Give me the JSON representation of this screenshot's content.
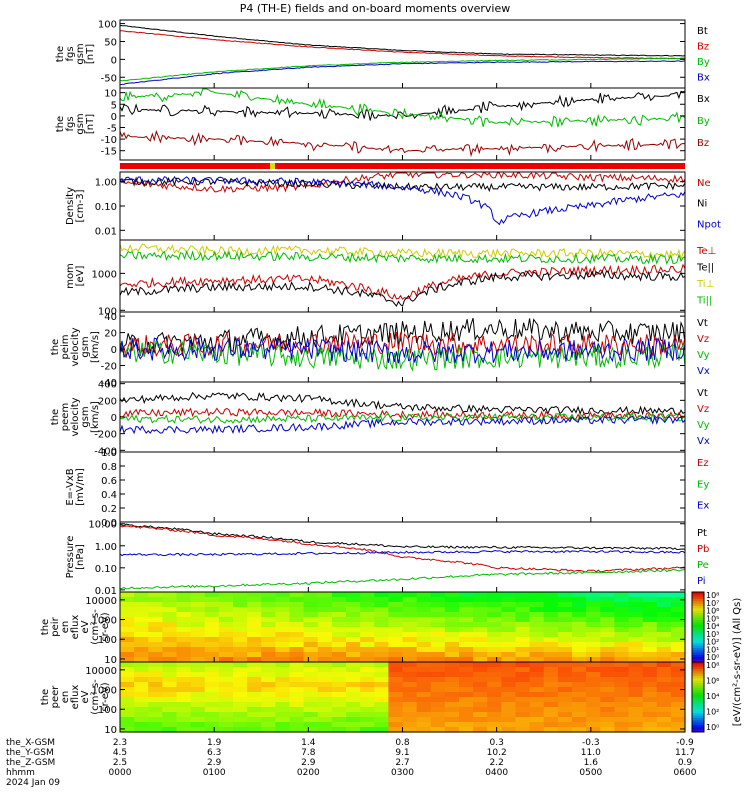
{
  "title": "P4 (TH-E) fields and on-board moments overview",
  "panels": [
    {
      "id": "fgs_gsm",
      "ylabel": [
        "the",
        "fgs",
        "gsm",
        "[nT]"
      ],
      "ticks": [
        "100",
        "50",
        "0",
        "-50"
      ],
      "tick_values": [
        100,
        50,
        0,
        -50
      ],
      "ylim": [
        -80,
        110
      ],
      "scale": "linear",
      "legend": [
        {
          "name": "Bt",
          "color": "#000000"
        },
        {
          "name": "Bz",
          "color": "#cc0000"
        },
        {
          "name": "By",
          "color": "#00bb00"
        },
        {
          "name": "Bx",
          "color": "#0000cc"
        }
      ]
    },
    {
      "id": "fgs_gsm_zoom",
      "ylabel": [
        "the",
        "fgs",
        "gsm",
        "[nT]"
      ],
      "ticks": [
        "10",
        "5",
        "0",
        "-5",
        "-10",
        "-15"
      ],
      "tick_values": [
        10,
        5,
        0,
        -5,
        -10,
        -15
      ],
      "ylim": [
        -19,
        12
      ],
      "scale": "linear",
      "legend": [
        {
          "name": "Bx",
          "color": "#000000"
        },
        {
          "name": "By",
          "color": "#00bb00"
        },
        {
          "name": "Bz",
          "color": "#990000"
        }
      ]
    },
    {
      "id": "density",
      "ylabel": [
        "Density",
        "[cm-3]"
      ],
      "ticks": [
        "1.00",
        "0.10",
        "0.01"
      ],
      "tick_values": [
        1,
        0.1,
        0.01
      ],
      "ylim": [
        0.004,
        2.5
      ],
      "scale": "log",
      "legend": [
        {
          "name": "Ne",
          "color": "#cc0000"
        },
        {
          "name": "Ni",
          "color": "#000000"
        },
        {
          "name": "Npot",
          "color": "#0000cc"
        }
      ]
    },
    {
      "id": "temp",
      "ylabel": [
        "mom",
        "[eV]"
      ],
      "ticks": [
        "1000",
        "100"
      ],
      "tick_values": [
        1000,
        100
      ],
      "ylim": [
        90,
        8000
      ],
      "scale": "log",
      "legend": [
        {
          "name": "Te⊥",
          "color": "#cc0000"
        },
        {
          "name": "Te||",
          "color": "#000000"
        },
        {
          "name": "Ti⊥",
          "color": "#cccc00"
        },
        {
          "name": "Ti||",
          "color": "#00bb00"
        }
      ]
    },
    {
      "id": "peim_vel",
      "ylabel": [
        "the",
        "peim",
        "velocity",
        "gsm",
        "[km/s]"
      ],
      "ticks": [
        "40",
        "20",
        "0",
        "-20",
        "-40"
      ],
      "tick_values": [
        40,
        20,
        0,
        -20,
        -40
      ],
      "ylim": [
        -40,
        45
      ],
      "scale": "linear",
      "legend": [
        {
          "name": "Vt",
          "color": "#000000"
        },
        {
          "name": "Vz",
          "color": "#cc0000"
        },
        {
          "name": "Vy",
          "color": "#00bb00"
        },
        {
          "name": "Vx",
          "color": "#0000cc"
        }
      ]
    },
    {
      "id": "peem_vel",
      "ylabel": [
        "the",
        "peem",
        "velocity",
        "gsm",
        "[km/s]"
      ],
      "ticks": [
        "400",
        "200",
        "0",
        "-200",
        "-400"
      ],
      "tick_values": [
        400,
        200,
        0,
        -200,
        -400
      ],
      "ylim": [
        -420,
        420
      ],
      "scale": "linear",
      "legend": [
        {
          "name": "Vt",
          "color": "#000000"
        },
        {
          "name": "Vz",
          "color": "#cc0000"
        },
        {
          "name": "Vy",
          "color": "#00bb00"
        },
        {
          "name": "Vx",
          "color": "#0000cc"
        }
      ]
    },
    {
      "id": "efield",
      "ylabel": [
        "E=-VxB",
        "[mV/m]"
      ],
      "ticks": [
        "1.0",
        "0.8",
        "0.6",
        "0.4",
        "0.2",
        "0.0"
      ],
      "tick_values": [
        1.0,
        0.8,
        0.6,
        0.4,
        0.2,
        0.0
      ],
      "ylim": [
        0,
        1
      ],
      "scale": "linear",
      "legend": [
        {
          "name": "Ez",
          "color": "#cc0000"
        },
        {
          "name": "Ey",
          "color": "#00bb00"
        },
        {
          "name": "Ex",
          "color": "#0000cc"
        }
      ]
    },
    {
      "id": "pressure",
      "ylabel": [
        "Pressure",
        "[nPa]"
      ],
      "ticks": [
        "10.00",
        "1.00",
        "0.10",
        "0.01"
      ],
      "tick_values": [
        10,
        1,
        0.1,
        0.01
      ],
      "ylim": [
        0.008,
        12
      ],
      "scale": "log",
      "legend": [
        {
          "name": "Pt",
          "color": "#000000"
        },
        {
          "name": "Pb",
          "color": "#cc0000"
        },
        {
          "name": "Pe",
          "color": "#00bb00"
        },
        {
          "name": "Pi",
          "color": "#0000cc"
        }
      ]
    },
    {
      "id": "peir_spec",
      "ylabel": [
        "the",
        "peir",
        "en",
        "eflux",
        "eV",
        "(cm²-s-",
        "sr-eV)"
      ],
      "ticks": [
        "10000",
        "1000",
        "100",
        "10"
      ],
      "tick_values": [
        10000,
        1000,
        100,
        10
      ],
      "scale": "log",
      "legend": []
    },
    {
      "id": "peer_spec",
      "ylabel": [
        "the",
        "peer",
        "en",
        "eflux",
        "eV",
        "(cm²-s-",
        "sr-eV)"
      ],
      "ticks": [
        "10000",
        "1000",
        "100",
        "10"
      ],
      "tick_values": [
        10000,
        1000,
        100,
        10
      ],
      "scale": "log",
      "legend": []
    }
  ],
  "colorbar": {
    "label": "[eV/(cm²-s-sr-eV)] (All Qs)",
    "ticks_upper": [
      "10⁸",
      "10⁷",
      "10⁶",
      "10⁵",
      "10⁴",
      "10³",
      "10²",
      "10¹",
      "10⁰"
    ],
    "ticks_lower": [
      "10⁸",
      "10⁶",
      "10⁴",
      "10²",
      "10⁰"
    ]
  },
  "orbit": {
    "row_labels": [
      "the_X-GSM",
      "the_Y-GSM",
      "the_Z-GSM",
      "hhmm",
      "2024 Jan 09"
    ],
    "columns": [
      {
        "x": "2.3",
        "y": "4.5",
        "z": "2.5",
        "t": "0000"
      },
      {
        "x": "1.9",
        "y": "6.3",
        "z": "2.9",
        "t": "0100"
      },
      {
        "x": "1.4",
        "y": "7.8",
        "z": "2.9",
        "t": "0200"
      },
      {
        "x": "0.8",
        "y": "9.1",
        "z": "2.7",
        "t": "0300"
      },
      {
        "x": "0.3",
        "y": "10.2",
        "z": "2.2",
        "t": "0400"
      },
      {
        "x": "-0.3",
        "y": "11.0",
        "z": "1.6",
        "t": "0500"
      },
      {
        "x": "-0.9",
        "y": "11.7",
        "z": "0.9",
        "t": "0600"
      }
    ]
  },
  "colors": {
    "red": "#cc0000",
    "green": "#00cc00",
    "blue": "#0000cc",
    "black": "#000000",
    "yellow": "#dddd00"
  },
  "chart_data": {
    "type": "line",
    "title": "P4 (TH-E) fields and on-board moments overview",
    "x_unit": "hhmm",
    "x": [
      "0000",
      "0100",
      "0200",
      "0300",
      "0400",
      "0500",
      "0600"
    ],
    "series": [
      {
        "name": "Bt",
        "panel": "fgs_gsm",
        "values": [
          95,
          65,
          40,
          25,
          15,
          12,
          10
        ]
      },
      {
        "name": "Bz",
        "panel": "fgs_gsm",
        "values": [
          80,
          55,
          35,
          20,
          10,
          5,
          2
        ]
      },
      {
        "name": "By",
        "panel": "fgs_gsm",
        "values": [
          -60,
          -35,
          -18,
          -8,
          -3,
          0,
          3
        ]
      },
      {
        "name": "Bx",
        "panel": "fgs_gsm",
        "values": [
          -70,
          -40,
          -22,
          -12,
          -8,
          -6,
          -5
        ]
      },
      {
        "name": "Bx",
        "panel": "fgs_gsm_zoom",
        "values": [
          3,
          2,
          1,
          0,
          4,
          7,
          9
        ]
      },
      {
        "name": "By",
        "panel": "fgs_gsm_zoom",
        "values": [
          8,
          10,
          5,
          1,
          -3,
          -2,
          -1
        ]
      },
      {
        "name": "Bz",
        "panel": "fgs_gsm_zoom",
        "values": [
          -9,
          -10,
          -12,
          -15,
          -14,
          -13,
          -12
        ]
      },
      {
        "name": "Ne",
        "panel": "density",
        "values": [
          0.9,
          0.5,
          0.6,
          2.0,
          2.0,
          1.5,
          1.3
        ]
      },
      {
        "name": "Ni",
        "panel": "density",
        "values": [
          1.0,
          1.0,
          0.8,
          0.6,
          0.6,
          0.6,
          0.7
        ]
      },
      {
        "name": "Npot",
        "panel": "density",
        "values": [
          1.2,
          1.1,
          1.0,
          0.6,
          0.02,
          0.1,
          0.3
        ]
      },
      {
        "name": "Te⊥",
        "panel": "temp",
        "values": [
          500,
          650,
          700,
          200,
          1000,
          1200,
          1300
        ]
      },
      {
        "name": "Te||",
        "panel": "temp",
        "values": [
          300,
          420,
          450,
          150,
          800,
          900,
          800
        ]
      },
      {
        "name": "Ti⊥",
        "panel": "temp",
        "values": [
          5000,
          4000,
          4200,
          3500,
          3500,
          3500,
          3200
        ]
      },
      {
        "name": "Ti||",
        "panel": "temp",
        "values": [
          3000,
          3000,
          2800,
          2600,
          2500,
          2500,
          2400
        ]
      },
      {
        "name": "Vt",
        "panel": "peim_vel",
        "values": [
          5,
          10,
          15,
          20,
          25,
          20,
          20
        ]
      },
      {
        "name": "Vz",
        "panel": "peim_vel",
        "values": [
          3,
          5,
          8,
          8,
          5,
          5,
          5
        ]
      },
      {
        "name": "Vy",
        "panel": "peim_vel",
        "values": [
          -3,
          -5,
          -10,
          -12,
          -10,
          -10,
          -8
        ]
      },
      {
        "name": "Vx",
        "panel": "peim_vel",
        "values": [
          0,
          0,
          0,
          -5,
          -3,
          -2,
          0
        ]
      },
      {
        "name": "Vt",
        "panel": "peem_vel",
        "values": [
          200,
          260,
          220,
          120,
          90,
          80,
          70
        ]
      },
      {
        "name": "Vz",
        "panel": "peem_vel",
        "values": [
          40,
          60,
          50,
          30,
          20,
          15,
          10
        ]
      },
      {
        "name": "Vy",
        "panel": "peem_vel",
        "values": [
          -20,
          -30,
          -20,
          -10,
          -5,
          -5,
          -5
        ]
      },
      {
        "name": "Vx",
        "panel": "peem_vel",
        "values": [
          -150,
          -150,
          -120,
          -60,
          -50,
          -40,
          -30
        ]
      },
      {
        "name": "Pt",
        "panel": "pressure",
        "values": [
          9,
          3.5,
          1.5,
          0.9,
          0.85,
          0.8,
          0.75
        ]
      },
      {
        "name": "Pb",
        "panel": "pressure",
        "values": [
          8,
          3,
          1.2,
          0.3,
          0.1,
          0.07,
          0.1
        ]
      },
      {
        "name": "Pe",
        "panel": "pressure",
        "values": [
          0.012,
          0.015,
          0.02,
          0.03,
          0.05,
          0.06,
          0.08
        ]
      },
      {
        "name": "Pi",
        "panel": "pressure",
        "values": [
          0.4,
          0.4,
          0.45,
          0.5,
          0.55,
          0.55,
          0.5
        ]
      }
    ]
  }
}
